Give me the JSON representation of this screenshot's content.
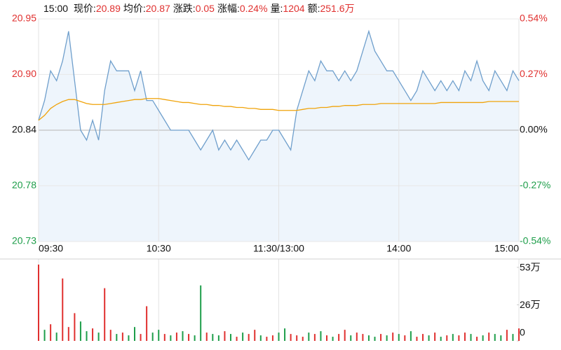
{
  "header": {
    "time": "15:00",
    "items": [
      {
        "label": "现价:",
        "value": "20.89"
      },
      {
        "label": "均价:",
        "value": "20.87"
      },
      {
        "label": "涨跌:",
        "value": "0.05"
      },
      {
        "label": "涨幅:",
        "value": "0.24%"
      },
      {
        "label": "量:",
        "value": "1204"
      },
      {
        "label": "额:",
        "value": "251.6万"
      }
    ]
  },
  "chart_data": [
    {
      "type": "line",
      "x": [
        0,
        3,
        6,
        9,
        12,
        15,
        18,
        21,
        24,
        27,
        30,
        33,
        36,
        39,
        42,
        45,
        48,
        51,
        54,
        57,
        60,
        63,
        66,
        69,
        72,
        75,
        78,
        81,
        84,
        87,
        90,
        93,
        96,
        99,
        102,
        105,
        108,
        111,
        114,
        117,
        120,
        123,
        126,
        129,
        132,
        135,
        138,
        141,
        144,
        147,
        150,
        153,
        156,
        159,
        162,
        165,
        168,
        171,
        174,
        177,
        180,
        183,
        186,
        189,
        192,
        195,
        198,
        201,
        204,
        207,
        210,
        213,
        216,
        219,
        222,
        225,
        228,
        231,
        234,
        237,
        240
      ],
      "series": [
        {
          "color": "#6f9fcc",
          "fill": "#eef5fc",
          "values": [
            20.85,
            20.87,
            20.9,
            20.89,
            20.91,
            20.94,
            20.89,
            20.84,
            20.83,
            20.85,
            20.83,
            20.88,
            20.91,
            20.9,
            20.9,
            20.9,
            20.88,
            20.9,
            20.87,
            20.87,
            20.86,
            20.85,
            20.84,
            20.84,
            20.84,
            20.84,
            20.83,
            20.82,
            20.83,
            20.84,
            20.82,
            20.83,
            20.82,
            20.83,
            20.82,
            20.81,
            20.82,
            20.83,
            20.83,
            20.84,
            20.84,
            20.83,
            20.82,
            20.86,
            20.88,
            20.9,
            20.89,
            20.91,
            20.9,
            20.9,
            20.89,
            20.9,
            20.89,
            20.9,
            20.92,
            20.94,
            20.92,
            20.91,
            20.9,
            20.9,
            20.89,
            20.88,
            20.87,
            20.88,
            20.9,
            20.89,
            20.88,
            20.89,
            20.88,
            20.89,
            20.88,
            20.9,
            20.89,
            20.91,
            20.89,
            20.88,
            20.9,
            20.89,
            20.88,
            20.9,
            20.89
          ]
        },
        {
          "color": "#f0a30a",
          "values": [
            20.85,
            20.855,
            20.862,
            20.866,
            20.869,
            20.871,
            20.871,
            20.869,
            20.867,
            20.866,
            20.866,
            20.866,
            20.867,
            20.868,
            20.869,
            20.87,
            20.871,
            20.871,
            20.872,
            20.872,
            20.872,
            20.871,
            20.87,
            20.869,
            20.868,
            20.868,
            20.867,
            20.866,
            20.866,
            20.865,
            20.865,
            20.864,
            20.864,
            20.863,
            20.863,
            20.862,
            20.862,
            20.861,
            20.861,
            20.861,
            20.86,
            20.86,
            20.86,
            20.86,
            20.861,
            20.862,
            20.862,
            20.863,
            20.863,
            20.864,
            20.864,
            20.865,
            20.865,
            20.865,
            20.866,
            20.866,
            20.866,
            20.867,
            20.867,
            20.867,
            20.867,
            20.867,
            20.867,
            20.867,
            20.867,
            20.867,
            20.867,
            20.868,
            20.868,
            20.868,
            20.868,
            20.868,
            20.868,
            20.868,
            20.868,
            20.869,
            20.869,
            20.869,
            20.869,
            20.869,
            20.869
          ]
        }
      ],
      "xlim": [
        0,
        240
      ],
      "xticks": [
        {
          "value": 0,
          "label": "09:30"
        },
        {
          "value": 60,
          "label": "10:30"
        },
        {
          "value": 120,
          "label": "11:30/13:00"
        },
        {
          "value": 180,
          "label": "14:00"
        },
        {
          "value": 240,
          "label": "15:00"
        }
      ],
      "ylim": [
        20.7275,
        20.9525
      ],
      "yticks": [
        {
          "value": 20.7275,
          "label": "20.73"
        },
        {
          "value": 20.7838,
          "label": "20.78"
        },
        {
          "value": 20.84,
          "label": "20.84"
        },
        {
          "value": 20.8963,
          "label": "20.90"
        },
        {
          "value": 20.9525,
          "label": "20.95"
        }
      ],
      "y2lim": [
        -0.54,
        0.54
      ],
      "y2ticks": [
        {
          "value": -0.54,
          "label": "-0.54%"
        },
        {
          "value": -0.27,
          "label": "-0.27%"
        },
        {
          "value": 0,
          "label": "0.00%"
        },
        {
          "value": 0.27,
          "label": "0.27%"
        },
        {
          "value": 0.54,
          "label": "0.54%"
        }
      ],
      "grid": true
    },
    {
      "type": "bar",
      "x": [
        0,
        3,
        6,
        9,
        12,
        15,
        18,
        21,
        24,
        27,
        30,
        33,
        36,
        39,
        42,
        45,
        48,
        51,
        54,
        57,
        60,
        63,
        66,
        69,
        72,
        75,
        78,
        81,
        84,
        87,
        90,
        93,
        96,
        99,
        102,
        105,
        108,
        111,
        114,
        117,
        120,
        123,
        126,
        129,
        132,
        135,
        138,
        141,
        144,
        147,
        150,
        153,
        156,
        159,
        162,
        165,
        168,
        171,
        174,
        177,
        180,
        183,
        186,
        189,
        192,
        195,
        198,
        201,
        204,
        207,
        210,
        213,
        216,
        219,
        222,
        225,
        228,
        231,
        234,
        237,
        240
      ],
      "values": [
        55,
        8,
        12,
        6,
        45,
        10,
        20,
        14,
        7,
        9,
        6,
        38,
        8,
        5,
        6,
        4,
        10,
        5,
        25,
        6,
        8,
        5,
        4,
        6,
        7,
        5,
        4,
        40,
        6,
        5,
        4,
        7,
        5,
        3,
        6,
        5,
        8,
        4,
        3,
        4,
        6,
        9,
        5,
        4,
        3,
        6,
        5,
        7,
        4,
        3,
        5,
        8,
        4,
        6,
        5,
        4,
        3,
        5,
        4,
        6,
        5,
        4,
        7,
        3,
        5,
        4,
        6,
        3,
        4,
        5,
        4,
        6,
        5,
        3,
        4,
        6,
        5,
        4,
        8,
        5,
        9
      ],
      "colors": [
        "#e0302f",
        "#1e9e4a",
        "#e0302f",
        "#1e9e4a",
        "#e0302f",
        "#e0302f",
        "#e0302f",
        "#1e9e4a",
        "#1e9e4a",
        "#e0302f",
        "#1e9e4a",
        "#e0302f",
        "#e0302f",
        "#1e9e4a",
        "#e0302f",
        "#1e9e4a",
        "#1e9e4a",
        "#e0302f",
        "#e0302f",
        "#1e9e4a",
        "#1e9e4a",
        "#e0302f",
        "#1e9e4a",
        "#e0302f",
        "#1e9e4a",
        "#e0302f",
        "#1e9e4a",
        "#1e9e4a",
        "#e0302f",
        "#1e9e4a",
        "#1e9e4a",
        "#e0302f",
        "#1e9e4a",
        "#e0302f",
        "#1e9e4a",
        "#e0302f",
        "#e0302f",
        "#1e9e4a",
        "#e0302f",
        "#e0302f",
        "#1e9e4a",
        "#1e9e4a",
        "#e0302f",
        "#e0302f",
        "#e0302f",
        "#1e9e4a",
        "#e0302f",
        "#1e9e4a",
        "#e0302f",
        "#1e9e4a",
        "#e0302f",
        "#e0302f",
        "#1e9e4a",
        "#e0302f",
        "#e0302f",
        "#1e9e4a",
        "#1e9e4a",
        "#e0302f",
        "#1e9e4a",
        "#e0302f",
        "#1e9e4a",
        "#e0302f",
        "#1e9e4a",
        "#e0302f",
        "#e0302f",
        "#1e9e4a",
        "#e0302f",
        "#1e9e4a",
        "#e0302f",
        "#1e9e4a",
        "#e0302f",
        "#e0302f",
        "#1e9e4a",
        "#e0302f",
        "#1e9e4a",
        "#e0302f",
        "#1e9e4a",
        "#1e9e4a",
        "#e0302f",
        "#1e9e4a",
        "#e0302f"
      ],
      "xlim": [
        0,
        240
      ],
      "ylim": [
        0,
        56
      ],
      "yticks": [
        {
          "value": 53,
          "label": "53万"
        },
        {
          "value": 26,
          "label": "26万"
        },
        0
      ]
    }
  ]
}
